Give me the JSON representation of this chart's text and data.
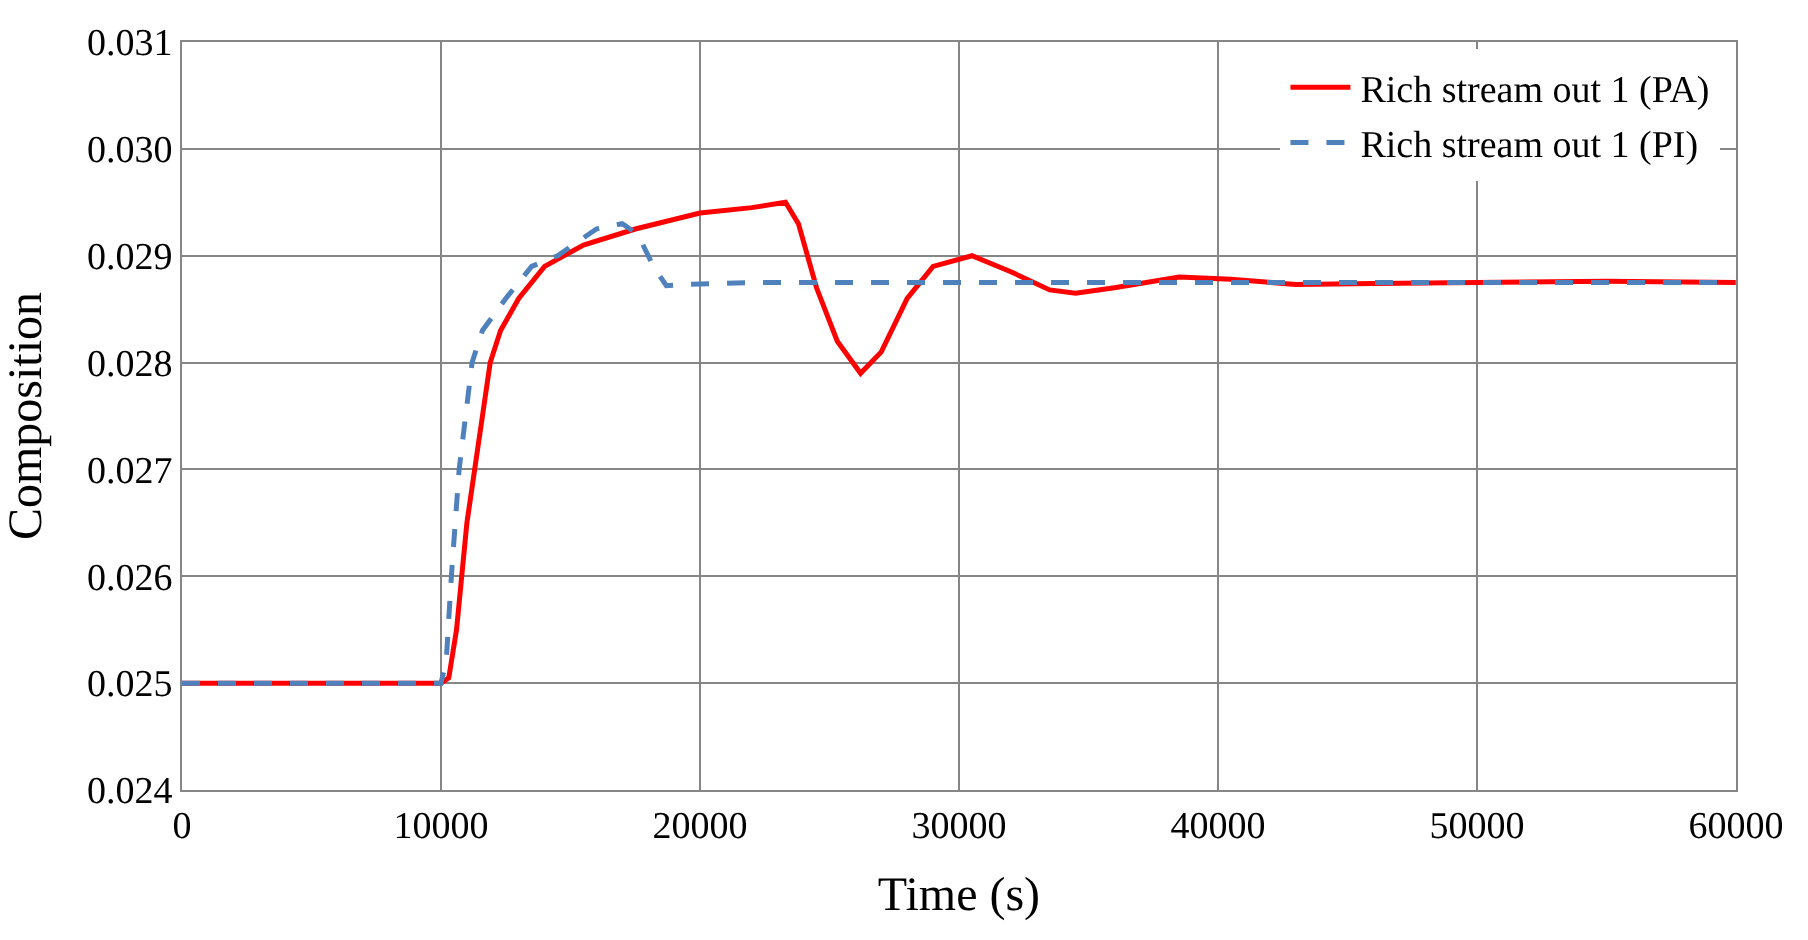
{
  "chart_data": {
    "type": "line",
    "xlabel": "Time (s)",
    "ylabel": "Composition",
    "xlim": [
      0,
      60000
    ],
    "xticks": [
      0,
      10000,
      20000,
      30000,
      40000,
      50000,
      60000
    ],
    "ylim": [
      0.024,
      0.031
    ],
    "yticks": [
      {
        "value": 0.024,
        "label": "0.024"
      },
      {
        "value": 0.025,
        "label": "0.025"
      },
      {
        "value": 0.026,
        "label": "0.026"
      },
      {
        "value": 0.027,
        "label": "0.027"
      },
      {
        "value": 0.028,
        "label": "0.028"
      },
      {
        "value": 0.029,
        "label": "0.029"
      },
      {
        "value": 0.03,
        "label": "0.030"
      },
      {
        "value": 0.031,
        "label": "0.031"
      }
    ],
    "grid": true,
    "legend": "top right",
    "marker": "none",
    "series": [
      {
        "name": "Rich stream out 1 (PA)",
        "color": "#ff0000",
        "line_style": "solid",
        "x": [
          0,
          10000,
          10300,
          10600,
          10800,
          11000,
          11300,
          11600,
          11900,
          12300,
          13000,
          14000,
          15500,
          17500,
          20000,
          22000,
          23300,
          23800,
          24500,
          25300,
          26200,
          27000,
          28000,
          29000,
          30500,
          32000,
          33500,
          34500,
          36000,
          38500,
          40500,
          43000,
          46000,
          50000,
          55000,
          60000
        ],
        "values": [
          0.025,
          0.025,
          0.02505,
          0.0255,
          0.026,
          0.0265,
          0.027,
          0.0275,
          0.028,
          0.0283,
          0.0286,
          0.0289,
          0.0291,
          0.02925,
          0.0294,
          0.02945,
          0.0295,
          0.0293,
          0.0287,
          0.0282,
          0.0279,
          0.0281,
          0.0286,
          0.0289,
          0.029,
          0.02885,
          0.02868,
          0.02865,
          0.0287,
          0.0288,
          0.02878,
          0.02873,
          0.02874,
          0.02875,
          0.02876,
          0.02875
        ]
      },
      {
        "name": "Rich stream out 1 (PI)",
        "color": "#4f81bd",
        "line_style": "dashed",
        "x": [
          0,
          10000,
          10200,
          10400,
          10700,
          11000,
          11200,
          11600,
          12500,
          13500,
          14500,
          16000,
          17000,
          17600,
          18200,
          18700,
          19300,
          22000,
          30000,
          40000,
          50000,
          60000
        ],
        "values": [
          0.025,
          0.025,
          0.0252,
          0.026,
          0.027,
          0.0276,
          0.028,
          0.0283,
          0.0286,
          0.0289,
          0.029,
          0.02925,
          0.0293,
          0.0292,
          0.0289,
          0.02872,
          0.02873,
          0.02875,
          0.02875,
          0.02875,
          0.02875,
          0.02875
        ]
      }
    ]
  }
}
